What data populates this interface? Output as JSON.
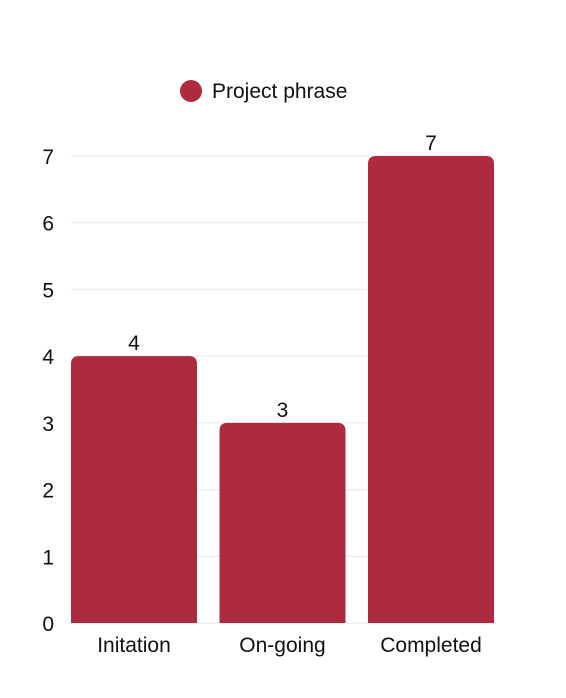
{
  "chart_data": {
    "type": "bar",
    "categories": [
      "Initation",
      "On-going",
      "Completed"
    ],
    "series": [
      {
        "name": "Project phrase",
        "values": [
          4,
          3,
          7
        ],
        "color": "#ae2a3e"
      }
    ],
    "ylim": [
      0,
      7
    ],
    "yticks": [
      "0",
      "1",
      "2",
      "3",
      "4",
      "5",
      "6",
      "7"
    ],
    "grid": true,
    "legend": "top-center",
    "data_labels": true,
    "title": "",
    "xlabel": "",
    "ylabel": ""
  }
}
